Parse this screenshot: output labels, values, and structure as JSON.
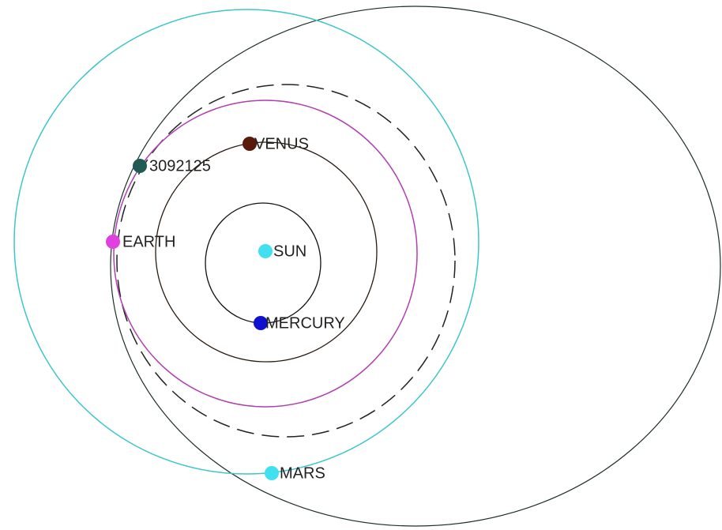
{
  "bodies": [
    {
      "label": "VENUS"
    },
    {
      "label": "3092125"
    },
    {
      "label": "EARTH"
    },
    {
      "label": "SUN"
    },
    {
      "label": "MERCURY"
    },
    {
      "label": "MARS"
    }
  ]
}
